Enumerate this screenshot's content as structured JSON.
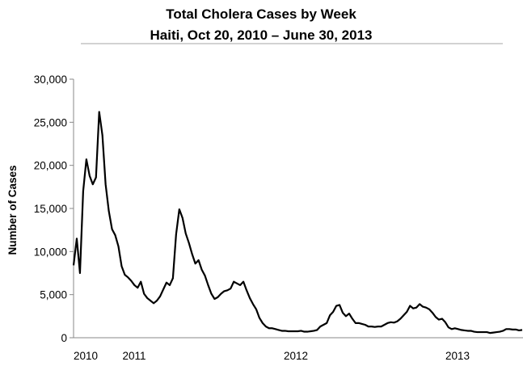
{
  "chart_data": {
    "type": "line",
    "title": "Total Cholera Cases by Week",
    "subtitle": "Haiti, Oct 20, 2010 – June 30, 2013",
    "xlabel": "",
    "ylabel": "Number of Cases",
    "ylim": [
      0,
      30000
    ],
    "y_ticks": [
      "30,000",
      "25,000",
      "20,000",
      "15,000",
      "10,000",
      "5,000",
      "0"
    ],
    "x_ticks": [
      "2010",
      "2011",
      "2012",
      "2013"
    ],
    "grid": false,
    "legend": "none",
    "line_color": "#000000",
    "x_unit": "week",
    "series": [
      {
        "values": [
          8400,
          11500,
          7500,
          17000,
          20700,
          18800,
          17800,
          18600,
          26200,
          23500,
          17800,
          14700,
          12600,
          11900,
          10600,
          8300,
          7300,
          7000,
          6600,
          6100,
          5800,
          6500,
          5100,
          4600,
          4300,
          4000,
          4300,
          4800,
          5600,
          6400,
          6100,
          6900,
          12000,
          14900,
          13900,
          12100,
          11000,
          9700,
          8600,
          9000,
          7900,
          7200,
          6100,
          5100,
          4500,
          4700,
          5100,
          5400,
          5500,
          5700,
          6500,
          6300,
          6100,
          6500,
          5500,
          4600,
          3900,
          3300,
          2300,
          1700,
          1300,
          1100,
          1100,
          1000,
          900,
          800,
          800,
          750,
          750,
          750,
          750,
          800,
          700,
          700,
          750,
          800,
          900,
          1300,
          1500,
          1700,
          2600,
          3000,
          3700,
          3800,
          2900,
          2500,
          2800,
          2200,
          1700,
          1700,
          1600,
          1500,
          1300,
          1300,
          1250,
          1300,
          1300,
          1500,
          1700,
          1800,
          1750,
          1900,
          2200,
          2600,
          3000,
          3700,
          3400,
          3500,
          3900,
          3600,
          3500,
          3300,
          2900,
          2400,
          2100,
          2200,
          1800,
          1200,
          1000,
          1100,
          1000,
          900,
          850,
          800,
          800,
          700,
          650,
          650,
          650,
          650,
          550,
          600,
          650,
          700,
          800,
          1000,
          1000,
          950,
          950,
          850,
          900
        ]
      }
    ]
  }
}
